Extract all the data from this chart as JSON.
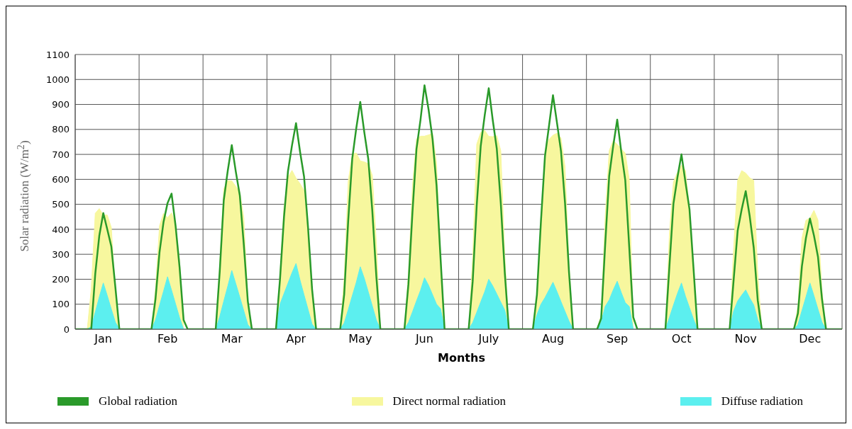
{
  "chart_data": {
    "type": "area",
    "xlabel": "Months",
    "ylabel": "Solar radiation (W/m$^{2}$)",
    "categories": [
      null,
      null,
      null,
      null,
      null,
      null,
      null,
      "Jan",
      null,
      null,
      null,
      null,
      null,
      null,
      null,
      null,
      null,
      null,
      null,
      null,
      null,
      null,
      null,
      "Feb",
      null,
      null,
      null,
      null,
      null,
      null,
      null,
      null,
      null,
      null,
      null,
      null,
      null,
      null,
      null,
      "Mar",
      null,
      null,
      null,
      null,
      null,
      null,
      null,
      null,
      null,
      null,
      null,
      null,
      null,
      null,
      null,
      "Apr",
      null,
      null,
      null,
      null,
      null,
      null,
      null,
      null,
      null,
      null,
      null,
      null,
      null,
      null,
      null,
      "May",
      null,
      null,
      null,
      null,
      null,
      null,
      null,
      null,
      null,
      null,
      null,
      null,
      null,
      null,
      null,
      "Jun",
      null,
      null,
      null,
      null,
      null,
      null,
      null,
      null,
      null,
      null,
      null,
      null,
      null,
      null,
      null,
      "July",
      null,
      null,
      null,
      null,
      null,
      null,
      null,
      null,
      null,
      null,
      null,
      null,
      null,
      null,
      null,
      "Aug",
      null,
      null,
      null,
      null,
      null,
      null,
      null,
      null,
      null,
      null,
      null,
      null,
      null,
      null,
      null,
      "Sep",
      null,
      null,
      null,
      null,
      null,
      null,
      null,
      null,
      null,
      null,
      null,
      null,
      null,
      null,
      null,
      "Oct",
      null,
      null,
      null,
      null,
      null,
      null,
      null,
      null,
      null,
      null,
      null,
      null,
      null,
      null,
      null,
      "Nov",
      null,
      null,
      null,
      null,
      null,
      null,
      null,
      null,
      null,
      null,
      null,
      null,
      null,
      null,
      null,
      "Dec",
      null,
      null,
      null,
      null,
      null,
      null,
      null,
      null
    ],
    "ylim": [
      0,
      1100
    ],
    "yticks": [
      0,
      100,
      200,
      300,
      400,
      500,
      600,
      700,
      800,
      900,
      1000,
      1100
    ],
    "grid": true,
    "legend": "bottom",
    "series": [
      {
        "name": "Global radiation",
        "type": "line",
        "color": "#2a9a2a",
        "values": [
          0,
          0,
          0,
          0,
          0,
          222,
          374,
          465,
          399,
          331,
          169,
          0,
          0,
          0,
          0,
          0,
          0,
          0,
          0,
          0,
          121,
          308,
          429,
          505,
          543,
          414,
          248,
          37,
          0,
          0,
          0,
          0,
          0,
          0,
          0,
          0,
          231,
          516,
          635,
          737,
          631,
          536,
          337,
          111,
          0,
          0,
          0,
          0,
          0,
          0,
          0,
          198,
          448,
          633,
          736,
          825,
          711,
          611,
          406,
          160,
          0,
          0,
          0,
          0,
          0,
          0,
          0,
          139,
          435,
          682,
          804,
          910,
          789,
          681,
          474,
          212,
          0,
          0,
          0,
          0,
          0,
          0,
          0,
          181,
          468,
          721,
          838,
          977,
          881,
          762,
          575,
          283,
          0,
          0,
          0,
          0,
          0,
          0,
          0,
          191,
          494,
          733,
          857,
          965,
          837,
          723,
          504,
          225,
          0,
          0,
          0,
          0,
          0,
          0,
          0,
          138,
          432,
          692,
          813,
          937,
          826,
          712,
          505,
          226,
          0,
          0,
          0,
          0,
          0,
          0,
          0,
          43,
          338,
          613,
          734,
          839,
          711,
          597,
          326,
          48,
          0,
          0,
          0,
          0,
          0,
          0,
          0,
          0,
          252,
          502,
          608,
          700,
          588,
          480,
          244,
          0,
          0,
          0,
          0,
          0,
          0,
          0,
          0,
          0,
          198,
          395,
          480,
          553,
          452,
          326,
          115,
          0,
          0,
          0,
          0,
          0,
          0,
          0,
          0,
          0,
          63,
          252,
          365,
          443,
          375,
          290,
          121,
          0,
          0,
          0,
          0,
          0
        ]
      },
      {
        "name": "Direct normal radiation",
        "color": "#f7f79e",
        "values": [
          0,
          0,
          0,
          0,
          161,
          464,
          483,
          457,
          457,
          407,
          151,
          0,
          0,
          0,
          0,
          0,
          0,
          0,
          0,
          0,
          163,
          414,
          464,
          446,
          466,
          417,
          273,
          0,
          0,
          0,
          0,
          0,
          0,
          0,
          0,
          0,
          260,
          562,
          595,
          594,
          572,
          547,
          445,
          111,
          0,
          0,
          0,
          0,
          0,
          0,
          0,
          216,
          489,
          608,
          636,
          605,
          583,
          555,
          366,
          125,
          0,
          0,
          0,
          0,
          0,
          0,
          0,
          207,
          593,
          700,
          706,
          674,
          670,
          663,
          616,
          349,
          0,
          0,
          0,
          0,
          0,
          0,
          0,
          222,
          575,
          762,
          773,
          773,
          778,
          784,
          665,
          298,
          0,
          0,
          0,
          0,
          0,
          0,
          0,
          289,
          741,
          788,
          796,
          772,
          771,
          775,
          715,
          291,
          0,
          0,
          0,
          0,
          0,
          0,
          0,
          134,
          421,
          712,
          760,
          777,
          785,
          765,
          650,
          256,
          0,
          0,
          0,
          0,
          0,
          0,
          0,
          57,
          452,
          715,
          755,
          740,
          722,
          705,
          599,
          0,
          0,
          0,
          0,
          0,
          0,
          0,
          0,
          0,
          386,
          590,
          628,
          657,
          635,
          483,
          225,
          0,
          0,
          0,
          0,
          0,
          0,
          0,
          0,
          0,
          326,
          597,
          635,
          625,
          606,
          596,
          225,
          0,
          0,
          0,
          0,
          0,
          0,
          0,
          0,
          0,
          91,
          364,
          436,
          445,
          476,
          437,
          155,
          0,
          0,
          0,
          0,
          0
        ]
      },
      {
        "name": "Diffuse radiation",
        "color": "#5cefef",
        "values": [
          0,
          0,
          0,
          0,
          10,
          68,
          129,
          185,
          134,
          80,
          28,
          0,
          0,
          0,
          0,
          0,
          0,
          0,
          0,
          0,
          37,
          95,
          152,
          210,
          156,
          101,
          46,
          0,
          0,
          0,
          0,
          0,
          0,
          0,
          0,
          0,
          50,
          112,
          172,
          235,
          182,
          128,
          73,
          18,
          0,
          0,
          0,
          0,
          0,
          0,
          0,
          100,
          142,
          184,
          226,
          263,
          196,
          137,
          79,
          20,
          0,
          0,
          0,
          0,
          0,
          0,
          0,
          25,
          78,
          133,
          187,
          250,
          204,
          149,
          93,
          37,
          0,
          0,
          0,
          0,
          0,
          0,
          0,
          27,
          69,
          113,
          155,
          206,
          176,
          138,
          100,
          82,
          0,
          0,
          0,
          0,
          0,
          0,
          0,
          26,
          67,
          109,
          150,
          200,
          173,
          141,
          108,
          76,
          0,
          0,
          0,
          0,
          0,
          0,
          0,
          58,
          100,
          126,
          157,
          188,
          150,
          110,
          71,
          32,
          0,
          0,
          0,
          0,
          0,
          0,
          0,
          29,
          91,
          117,
          157,
          192,
          147,
          106,
          91,
          0,
          0,
          0,
          0,
          0,
          0,
          0,
          0,
          0,
          47,
          96,
          143,
          185,
          132,
          86,
          40,
          0,
          0,
          0,
          0,
          0,
          0,
          0,
          0,
          0,
          73,
          113,
          136,
          157,
          125,
          97,
          38,
          0,
          0,
          0,
          0,
          0,
          0,
          0,
          0,
          0,
          18,
          74,
          129,
          185,
          134,
          80,
          28,
          0,
          0,
          0,
          0,
          0
        ]
      }
    ]
  }
}
